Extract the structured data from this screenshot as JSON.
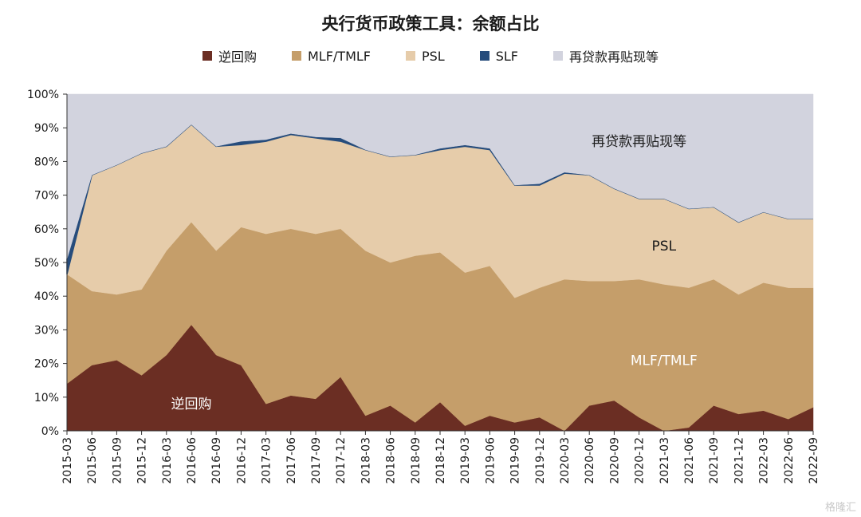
{
  "chart_data": {
    "type": "area",
    "stacked": true,
    "title": "央行货币政策工具：余额占比",
    "x": [
      "2015-03",
      "2015-06",
      "2015-09",
      "2015-12",
      "2016-03",
      "2016-06",
      "2016-09",
      "2016-12",
      "2017-03",
      "2017-06",
      "2017-09",
      "2017-12",
      "2018-03",
      "2018-06",
      "2018-09",
      "2018-12",
      "2019-03",
      "2019-06",
      "2019-09",
      "2019-12",
      "2020-03",
      "2020-06",
      "2020-09",
      "2020-12",
      "2021-03",
      "2021-06",
      "2021-09",
      "2021-12",
      "2022-03",
      "2022-06",
      "2022-09"
    ],
    "ylim": [
      0,
      100
    ],
    "yticks": [
      "0%",
      "10%",
      "20%",
      "30%",
      "40%",
      "50%",
      "60%",
      "70%",
      "80%",
      "90%",
      "100%"
    ],
    "legend_position": "top",
    "grid": false,
    "series": [
      {
        "name": "逆回购",
        "color": "#6b2e23",
        "values": [
          14,
          19.5,
          21,
          16.5,
          22.5,
          31.5,
          22.5,
          19.5,
          8,
          10.5,
          9.5,
          16,
          4.5,
          7.5,
          2.5,
          8.5,
          1.5,
          4.5,
          2.5,
          4,
          0,
          7.5,
          9,
          4,
          0,
          1,
          7.5,
          5,
          6,
          3.5,
          7
        ]
      },
      {
        "name": "MLF/TMLF",
        "color": "#c59e6a",
        "values": [
          32.5,
          22,
          19.5,
          25.5,
          31,
          30.5,
          31,
          41,
          50.5,
          49.5,
          49,
          44,
          49,
          42.5,
          49.5,
          44.5,
          45.5,
          44.5,
          37,
          38.5,
          45,
          37,
          35.5,
          41,
          43.5,
          41.5,
          37.5,
          35.5,
          38,
          39,
          35.5
        ]
      },
      {
        "name": "PSL",
        "color": "#e6ccaa",
        "values": [
          0,
          34.5,
          38.5,
          40.5,
          31,
          29,
          31,
          24.5,
          27.5,
          28,
          28.5,
          26,
          30,
          31.5,
          30,
          30.5,
          37.5,
          34.5,
          33.5,
          30.5,
          31.5,
          31.5,
          27.5,
          24,
          25.5,
          23.5,
          21.5,
          21.5,
          21,
          20.5,
          20.5
        ]
      },
      {
        "name": "SLF",
        "color": "#264c7c",
        "values": [
          4.5,
          0,
          0,
          0,
          0,
          0,
          0,
          1,
          0.5,
          0.3,
          0.3,
          1,
          0,
          0,
          0,
          0.4,
          0.4,
          0.4,
          0,
          0.4,
          0.3,
          0,
          0,
          0,
          0,
          0,
          0,
          0,
          0,
          0,
          0
        ]
      },
      {
        "name": "再贷款再贴现等",
        "color": "#d2d3de",
        "values": [
          49,
          24,
          21,
          17.5,
          15.5,
          9,
          15.5,
          14,
          13.5,
          11.7,
          12.7,
          13,
          16.5,
          18.5,
          18,
          16.1,
          15.1,
          16.1,
          27,
          26.6,
          23.2,
          24,
          28,
          31,
          31,
          34,
          33.5,
          38,
          35,
          37,
          37
        ]
      }
    ],
    "area_labels": [
      {
        "series": "再贷款再贴现等",
        "text": "再贷款再贴现等",
        "x": "2020-12",
        "y": 86,
        "color": "#1a1a1a"
      },
      {
        "series": "PSL",
        "text": "PSL",
        "x": "2021-03",
        "y": 55,
        "color": "#1a1a1a"
      },
      {
        "series": "MLF/TMLF",
        "text": "MLF/TMLF",
        "x": "2021-03",
        "y": 21,
        "color": "#ffffff"
      },
      {
        "series": "逆回购",
        "text": "逆回购",
        "x": "2016-06",
        "y": 8,
        "color": "#ffffff"
      }
    ]
  },
  "watermark": "格隆汇"
}
